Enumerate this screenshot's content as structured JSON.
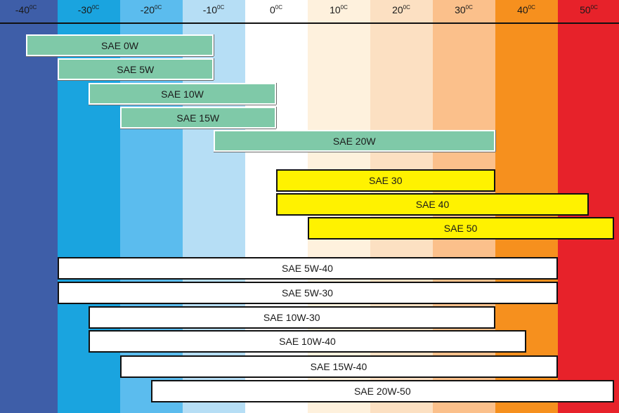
{
  "chart_data": {
    "type": "range-bar",
    "title": "",
    "x_unit_superscript": "0C",
    "x_ticks": [
      -40,
      -30,
      -20,
      -10,
      0,
      10,
      20,
      30,
      40,
      50
    ],
    "xlim": [
      -45,
      54
    ],
    "colors": {
      "bands": [
        "#3e5ea8",
        "#1aa4df",
        "#5bbcee",
        "#b6def5",
        "#ffffff",
        "#fef1dd",
        "#fce0c2",
        "#fbc08b",
        "#f6901e",
        "#e7222a"
      ],
      "monograde_winter": "#7fc9a8",
      "monograde_summer": "#fff200",
      "multigrade": "#ffffff"
    },
    "bars": [
      {
        "label": "SAE 0W",
        "kind": "monograde_winter",
        "min": -40,
        "max": -10
      },
      {
        "label": "SAE 5W",
        "kind": "monograde_winter",
        "min": -35,
        "max": -10
      },
      {
        "label": "SAE 10W",
        "kind": "monograde_winter",
        "min": -30,
        "max": 0
      },
      {
        "label": "SAE 15W",
        "kind": "monograde_winter",
        "min": -25,
        "max": 0
      },
      {
        "label": "SAE 20W",
        "kind": "monograde_winter",
        "min": -10,
        "max": 35
      },
      {
        "label": "SAE 30",
        "kind": "monograde_summer",
        "min": 0,
        "max": 35
      },
      {
        "label": "SAE 40",
        "kind": "monograde_summer",
        "min": 0,
        "max": 50
      },
      {
        "label": "SAE 50",
        "kind": "monograde_summer",
        "min": 5,
        "max": 54
      },
      {
        "label": "SAE 5W-40",
        "kind": "multigrade",
        "min": -35,
        "max": 45
      },
      {
        "label": "SAE 5W-30",
        "kind": "multigrade",
        "min": -35,
        "max": 45
      },
      {
        "label": "SAE 10W-30",
        "kind": "multigrade",
        "min": -30,
        "max": 35
      },
      {
        "label": "SAE 10W-40",
        "kind": "multigrade",
        "min": -30,
        "max": 40
      },
      {
        "label": "SAE 15W-40",
        "kind": "multigrade",
        "min": -25,
        "max": 45
      },
      {
        "label": "SAE 20W-50",
        "kind": "multigrade",
        "min": -20,
        "max": 54
      }
    ]
  }
}
